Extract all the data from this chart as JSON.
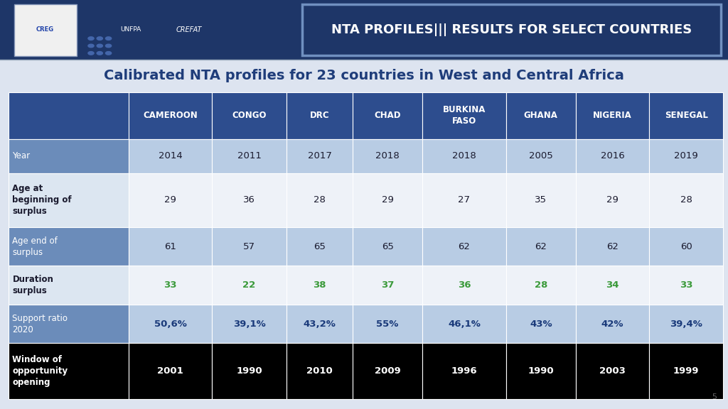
{
  "title": "Calibrated NTA profiles for 23 countries in West and Central Africa",
  "header_title": "NTA PROFILES||| RESULTS FOR SELECT COUNTRIES",
  "columns": [
    "",
    "CAMEROON",
    "CONGO",
    "DRC",
    "CHAD",
    "BURKINA\nFASO",
    "GHANA",
    "NIGERIA",
    "SENEGAL"
  ],
  "rows": [
    {
      "label": "Year",
      "values": [
        "2014",
        "2011",
        "2017",
        "2018",
        "2018",
        "2005",
        "2016",
        "2019"
      ],
      "label_bg": "#6b8cba",
      "data_bg": "#b8cce4",
      "label_color": "#ffffff",
      "data_color": "#1a1a2e",
      "bold_data": false,
      "bold_label": false,
      "label_bold": false
    },
    {
      "label": "Age at\nbeginning of\nsurplus",
      "values": [
        "29",
        "36",
        "28",
        "29",
        "27",
        "35",
        "29",
        "28"
      ],
      "label_bg": "#dce6f1",
      "data_bg": "#eef2f8",
      "label_color": "#1a1a2e",
      "data_color": "#1a1a2e",
      "bold_data": false,
      "bold_label": true,
      "label_bold": true
    },
    {
      "label": "Age end of\nsurplus",
      "values": [
        "61",
        "57",
        "65",
        "65",
        "62",
        "62",
        "62",
        "60"
      ],
      "label_bg": "#6b8cba",
      "data_bg": "#b8cce4",
      "label_color": "#ffffff",
      "data_color": "#1a1a2e",
      "bold_data": false,
      "bold_label": false,
      "label_bold": false
    },
    {
      "label": "Duration\nsurplus",
      "values": [
        "33",
        "22",
        "38",
        "37",
        "36",
        "28",
        "34",
        "33"
      ],
      "label_bg": "#dce6f1",
      "data_bg": "#eef2f8",
      "label_color": "#1a1a2e",
      "data_color": "#3a9a3a",
      "bold_data": true,
      "bold_label": true,
      "label_bold": true
    },
    {
      "label": "Support ratio\n2020",
      "values": [
        "50,6%",
        "39,1%",
        "43,2%",
        "55%",
        "46,1%",
        "43%",
        "42%",
        "39,4%"
      ],
      "label_bg": "#6b8cba",
      "data_bg": "#b8cce4",
      "label_color": "#ffffff",
      "data_color": "#1a3a7a",
      "bold_data": true,
      "bold_label": false,
      "label_bold": false
    },
    {
      "label": "Window of\nopportunity\nopening",
      "values": [
        "2001",
        "1990",
        "2010",
        "2009",
        "1996",
        "1990",
        "2003",
        "1999"
      ],
      "label_bg": "#000000",
      "data_bg": "#000000",
      "label_color": "#ffffff",
      "data_color": "#ffffff",
      "bold_data": true,
      "bold_label": true,
      "label_bold": true
    }
  ],
  "header_bg": "#2d4d8e",
  "header_color": "#ffffff",
  "top_bar_bg": "#1e3668",
  "title_color": "#1f3d7a",
  "page_num": "5",
  "bg_color": "#dde4f0"
}
